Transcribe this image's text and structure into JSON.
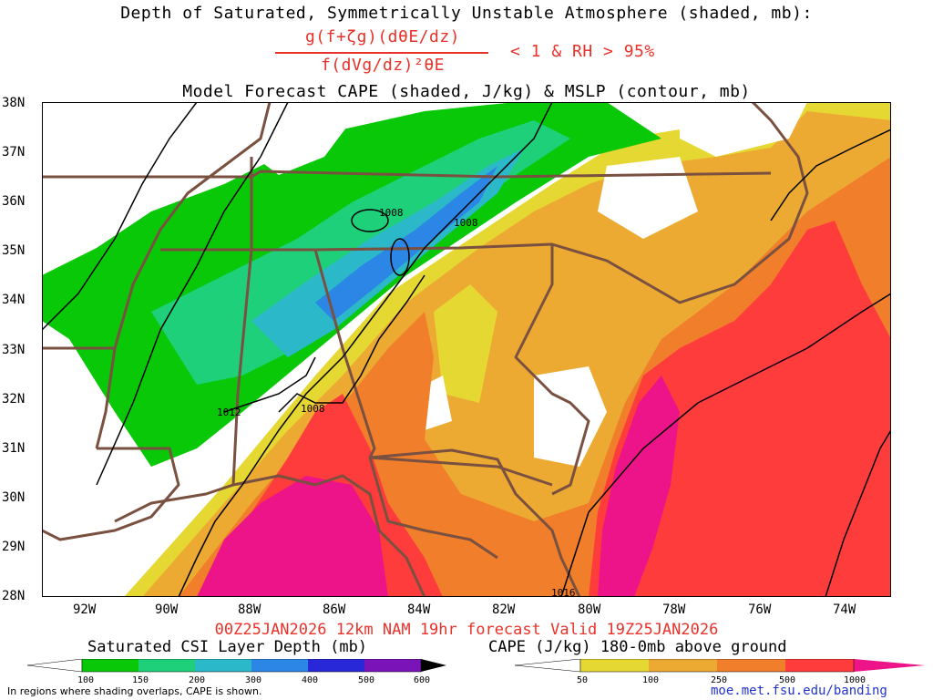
{
  "title": {
    "line1": "Depth of Saturated, Symmetrically Unstable Atmosphere (shaded, mb):",
    "numerator": "g(f+ζg)(dθE/dz)",
    "denominator": "f(dVg/dz)²θE",
    "condition": "< 1 & RH > 95%",
    "line3": "Model Forecast CAPE (shaded, J/kg) & MSLP (contour, mb)"
  },
  "valid_line": "00Z25JAN2026 12km NAM 19hr forecast Valid 19Z25JAN2026",
  "lat_labels": [
    "38N",
    "37N",
    "36N",
    "35N",
    "34N",
    "33N",
    "32N",
    "31N",
    "30N",
    "29N",
    "28N"
  ],
  "lon_labels": [
    "92W",
    "90W",
    "88W",
    "86W",
    "84W",
    "82W",
    "80W",
    "78W",
    "76W",
    "74W"
  ],
  "contour_labels": [
    "1008",
    "1008",
    "1012",
    "1008",
    "1016"
  ],
  "csi_bar": {
    "title": "Saturated CSI Layer Depth (mb)",
    "ticks": [
      "100",
      "150",
      "200",
      "300",
      "400",
      "500",
      "600"
    ],
    "colors": [
      "#ffffff",
      "#08c808",
      "#1ed07a",
      "#2bb8c8",
      "#2b86e6",
      "#2828d8",
      "#7a14b8",
      "#000000"
    ]
  },
  "cape_bar": {
    "title": "CAPE (J/kg) 180-0mb above ground",
    "ticks": [
      "50",
      "100",
      "250",
      "500",
      "1000"
    ],
    "colors": [
      "#ffffff",
      "#e6d832",
      "#ecaa32",
      "#f07e2a",
      "#ff3c3c",
      "#ec1488"
    ]
  },
  "footer_left": "In regions where shading overlaps, CAPE is shown.",
  "footer_right": "moe.met.fsu.edu/banding",
  "colors": {
    "title_red": "#e8322a",
    "border": "#7a5040",
    "contour": "#000000",
    "link": "#2233cc"
  }
}
